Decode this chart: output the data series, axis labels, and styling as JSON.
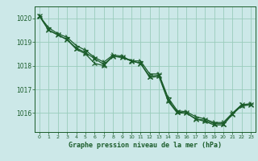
{
  "title": "Graphe pression niveau de la mer (hPa)",
  "bg_color": "#cce8e8",
  "plot_bg_color": "#cce8e8",
  "grid_color": "#99ccbb",
  "line_color": "#1a5c2a",
  "xlim": [
    -0.5,
    23.5
  ],
  "ylim": [
    1015.2,
    1020.5
  ],
  "yticks": [
    1016,
    1017,
    1018,
    1019,
    1020
  ],
  "xticks": [
    0,
    1,
    2,
    3,
    4,
    5,
    6,
    7,
    8,
    9,
    10,
    11,
    12,
    13,
    14,
    15,
    16,
    17,
    18,
    19,
    20,
    21,
    22,
    23
  ],
  "series": [
    [
      1020.1,
      1019.6,
      1019.35,
      1019.2,
      1018.85,
      1018.65,
      1018.35,
      1018.15,
      1018.45,
      1018.4,
      1018.2,
      1018.2,
      1017.65,
      1017.65,
      1016.65,
      1016.1,
      1016.05,
      1015.85,
      1015.75,
      1015.6,
      1015.6,
      1016.0,
      1016.35,
      1016.4
    ],
    [
      1020.1,
      1019.5,
      1019.3,
      1019.1,
      1018.75,
      1018.55,
      1018.3,
      1018.05,
      1018.4,
      1018.35,
      1018.2,
      1018.1,
      1017.55,
      1017.6,
      1016.55,
      1016.05,
      1016.0,
      1015.75,
      1015.7,
      1015.55,
      1015.55,
      1015.95,
      1016.35,
      1016.35
    ],
    [
      1020.1,
      1019.5,
      1019.3,
      1019.1,
      1018.7,
      1018.5,
      1018.1,
      1018.0,
      1018.4,
      1018.35,
      1018.2,
      1018.1,
      1017.5,
      1017.55,
      1016.5,
      1016.0,
      1016.0,
      1015.75,
      1015.65,
      1015.5,
      1015.5,
      1015.95,
      1016.3,
      1016.35
    ]
  ],
  "markers": [
    "4",
    "x",
    "2"
  ],
  "markersizes": [
    5,
    5,
    5
  ]
}
